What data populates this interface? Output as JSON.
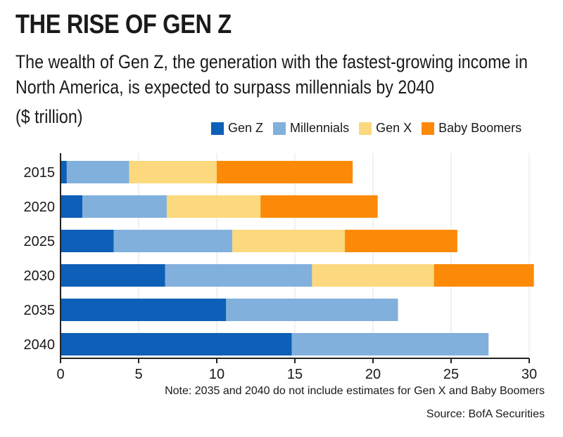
{
  "header": {
    "title": "THE RISE OF GEN Z",
    "subtitle": "The wealth of Gen Z, the generation with the fastest-growing income in North America, is expected to surpass millennials by 2040",
    "unit": "($ trillion)"
  },
  "footer": {
    "note": "Note: 2035 and 2040 do not include estimates for Gen X and Baby Boomers",
    "source": "Source: BofA Securities"
  },
  "colors": {
    "gen_z": "#0d5fb8",
    "millennials": "#82b0dd",
    "gen_x": "#fcd97e",
    "baby_boomers": "#fc8a08",
    "axis": "#222222",
    "grid": "#e3e3e3"
  },
  "chart_data": {
    "type": "bar",
    "orientation": "horizontal",
    "stacked": true,
    "categories": [
      "2015",
      "2020",
      "2025",
      "2030",
      "2035",
      "2040"
    ],
    "series": [
      {
        "name": "Gen Z",
        "color_key": "gen_z",
        "values": [
          0.4,
          1.4,
          3.4,
          6.7,
          10.6,
          14.8
        ]
      },
      {
        "name": "Millennials",
        "color_key": "millennials",
        "values": [
          4.0,
          5.4,
          7.6,
          9.4,
          11.0,
          12.6
        ]
      },
      {
        "name": "Gen X",
        "color_key": "gen_x",
        "values": [
          5.6,
          6.0,
          7.2,
          7.8,
          0,
          0
        ]
      },
      {
        "name": "Baby Boomers",
        "color_key": "baby_boomers",
        "values": [
          8.7,
          7.5,
          7.2,
          6.4,
          0,
          0
        ]
      }
    ],
    "xlim": [
      0,
      30
    ],
    "xticks": [
      0,
      5,
      10,
      15,
      20,
      25,
      30
    ],
    "grid": true,
    "legend_position": "top-right"
  }
}
